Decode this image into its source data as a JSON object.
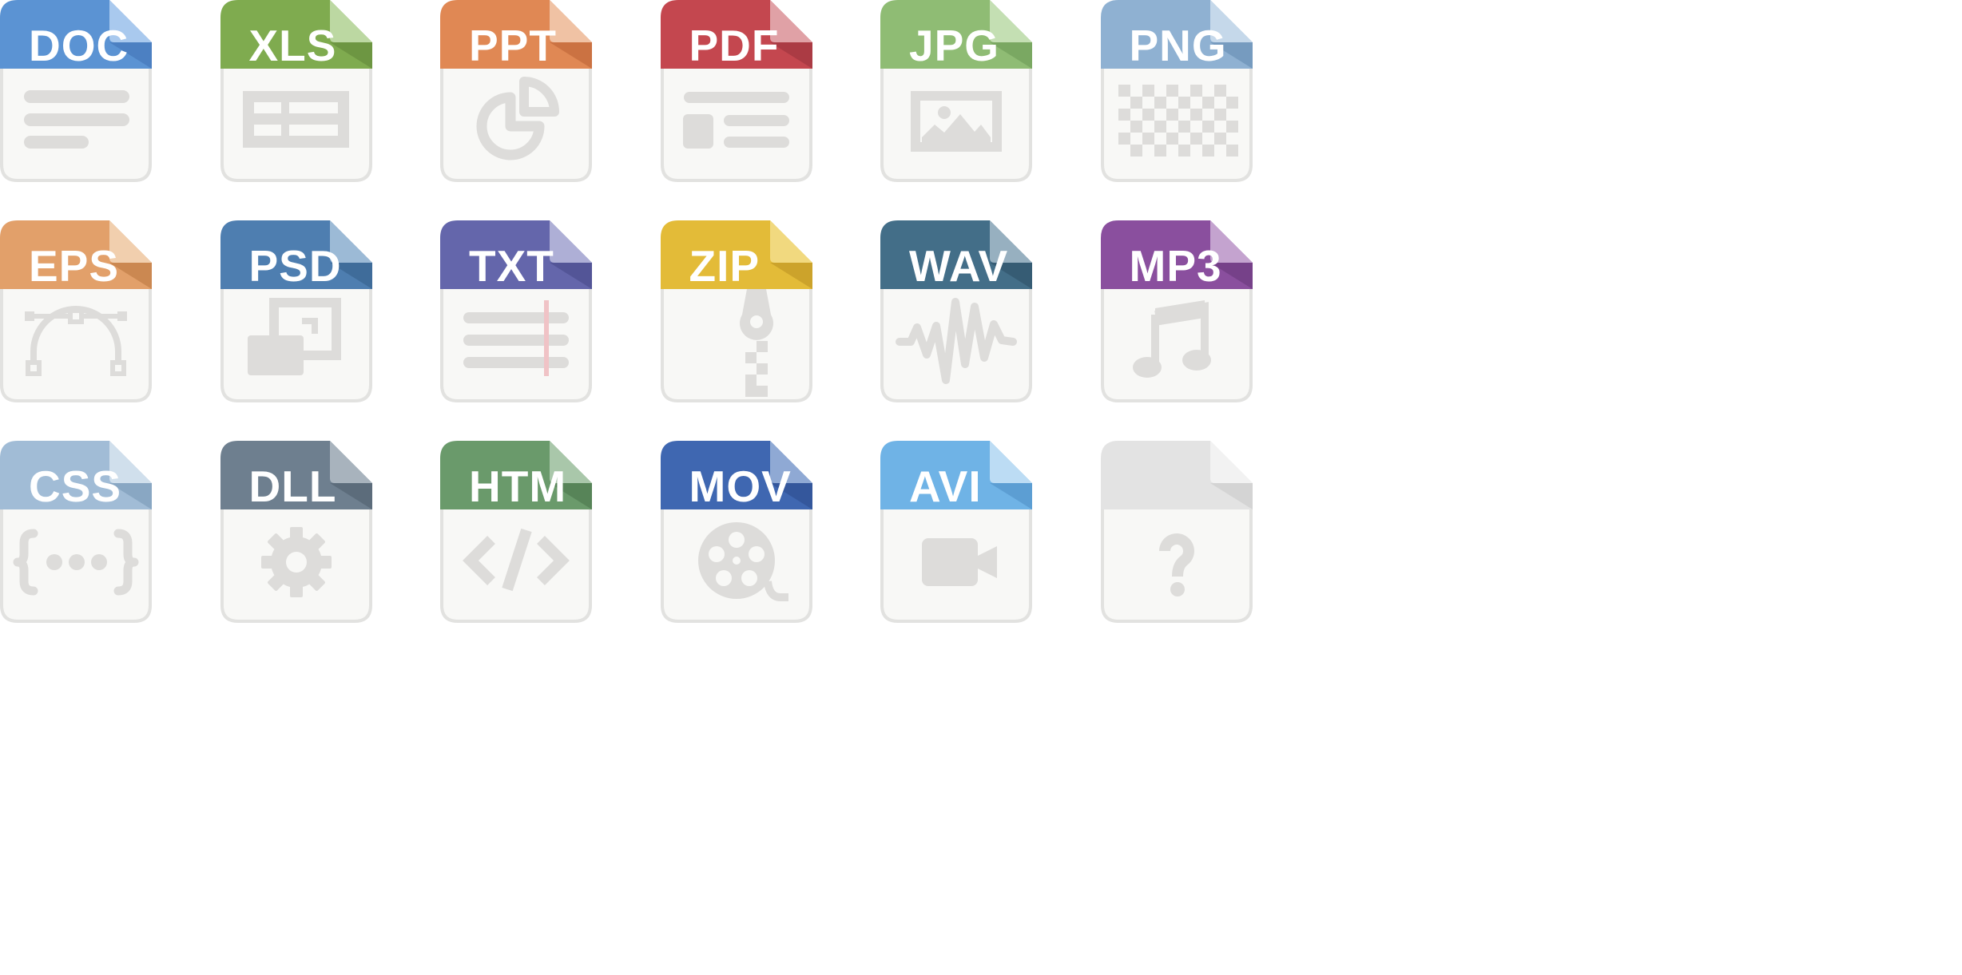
{
  "icons": [
    {
      "label": "DOC",
      "name": "doc",
      "color": "#5b93d3",
      "light": "#a9c9ee",
      "dark": "#4a7ec0",
      "glyph": "document-lines-icon"
    },
    {
      "label": "XLS",
      "name": "xls",
      "color": "#7fab4f",
      "light": "#bcd8a2",
      "dark": "#6b9440",
      "glyph": "spreadsheet-icon"
    },
    {
      "label": "PPT",
      "name": "ppt",
      "color": "#e08854",
      "light": "#f0c2a4",
      "dark": "#c97040",
      "glyph": "pie-chart-icon"
    },
    {
      "label": "PDF",
      "name": "pdf",
      "color": "#c4474f",
      "light": "#e0a1a6",
      "dark": "#a93a42",
      "glyph": "layout-icon"
    },
    {
      "label": "JPG",
      "name": "jpg",
      "color": "#8fbc74",
      "light": "#c4dfb3",
      "dark": "#78a560",
      "glyph": "picture-icon"
    },
    {
      "label": "PNG",
      "name": "png",
      "color": "#8fb1d2",
      "light": "#c5d8ea",
      "dark": "#7399bc",
      "glyph": "checkerboard-icon"
    },
    {
      "label": "EPS",
      "name": "eps",
      "color": "#e2a06a",
      "light": "#f1cfae",
      "dark": "#c9854f",
      "glyph": "bezier-curve-icon"
    },
    {
      "label": "PSD",
      "name": "psd",
      "color": "#4e7eb0",
      "light": "#9cbad6",
      "dark": "#3e6a98",
      "glyph": "layers-icon"
    },
    {
      "label": "TXT",
      "name": "txt",
      "color": "#6466ab",
      "light": "#aeafd6",
      "dark": "#515395",
      "glyph": "text-lines-icon"
    },
    {
      "label": "ZIP",
      "name": "zip",
      "color": "#e3bb38",
      "light": "#f1d97f",
      "dark": "#c9a12a",
      "glyph": "zipper-icon"
    },
    {
      "label": "WAV",
      "name": "wav",
      "color": "#436e88",
      "light": "#97b0c0",
      "dark": "#355a72",
      "glyph": "waveform-icon"
    },
    {
      "label": "MP3",
      "name": "mp3",
      "color": "#8a4f9e",
      "light": "#c4a3cf",
      "dark": "#733f86",
      "glyph": "music-note-icon"
    },
    {
      "label": "CSS",
      "name": "css",
      "color": "#a1bcd6",
      "light": "#d0dfec",
      "dark": "#86a4c1",
      "glyph": "curly-braces-icon"
    },
    {
      "label": "DLL",
      "name": "dll",
      "color": "#6e7f8f",
      "light": "#a8b3bd",
      "dark": "#5a6a79",
      "glyph": "gear-icon"
    },
    {
      "label": "HTM",
      "name": "htm",
      "color": "#6a9a6b",
      "light": "#a9c7aa",
      "dark": "#558257",
      "glyph": "code-brackets-icon"
    },
    {
      "label": "MOV",
      "name": "mov",
      "color": "#3f67b1",
      "light": "#8fa9d4",
      "dark": "#33559a",
      "glyph": "film-reel-icon"
    },
    {
      "label": "AVI",
      "name": "avi",
      "color": "#6fb3e6",
      "light": "#bcdcf4",
      "dark": "#5a9bd0",
      "glyph": "video-camera-icon"
    },
    {
      "label": "",
      "name": "unknown",
      "color": "#e3e3e3",
      "light": "#f2f2f2",
      "dark": "#d2d2d2",
      "glyph": "question-mark-icon"
    }
  ],
  "colors": {
    "page_background": "#ffffff",
    "file_body": "#f8f8f6",
    "file_outline": "#e2e2e0",
    "glyph": "#dddcda",
    "txt_margin_line": "#f0c3c6"
  }
}
